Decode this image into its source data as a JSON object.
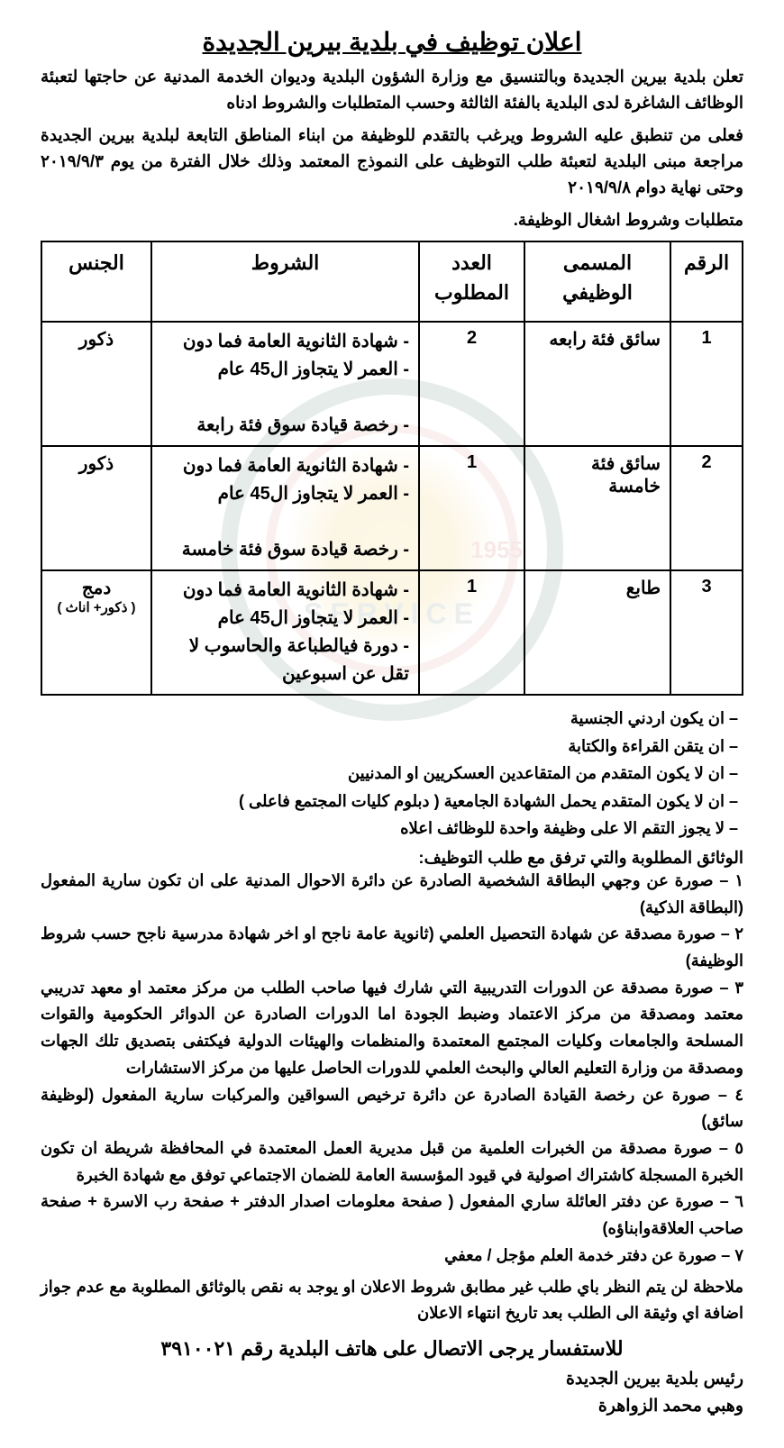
{
  "title": "اعلان توظيف في بلدية بيرين الجديدة",
  "intro": {
    "p1": "تعلن بلدية بيرين الجديدة وبالتنسيق مع وزارة الشؤون البلدية وديوان الخدمة المدنية عن حاجتها لتعبئة الوظائف الشاغرة لدى البلدية بالفئة الثالثة وحسب المتطلبات والشروط ادناه",
    "p2": "فعلى من تنطبق عليه الشروط ويرغب بالتقدم للوظيفة من ابناء المناطق التابعة لبلدية بيرين الجديدة مراجعة مبنى البلدية لتعبئة طلب التوظيف على النموذج المعتمد وذلك خلال الفترة من يوم ٢٠١٩/٩/٣ وحتى نهاية دوام ٢٠١٩/٩/٨",
    "conditions_label": "متطلبات وشروط اشغال الوظيفة."
  },
  "table": {
    "headers": {
      "num": "الرقم",
      "job": "المسمى الوظيفي",
      "count": "العدد المطلوب",
      "cond": "الشروط",
      "gender": "الجنس"
    },
    "rows": [
      {
        "num": "1",
        "job": "سائق فئة رابعه",
        "count": "2",
        "cond": "- شهادة الثانوية العامة فما دون\n- العمر لا يتجاوز ال45 عام\n\n- رخصة قيادة سوق فئة رابعة",
        "gender": "ذكور",
        "gender_sub": ""
      },
      {
        "num": "2",
        "job": "سائق فئة خامسة",
        "count": "1",
        "cond": "- شهادة الثانوية العامة فما دون\n- العمر لا يتجاوز ال45 عام\n\n- رخصة قيادة سوق فئة خامسة",
        "gender": "ذكور",
        "gender_sub": ""
      },
      {
        "num": "3",
        "job": "طابع",
        "count": "1",
        "cond": "- شهادة الثانوية العامة فما دون\n- العمر لا يتجاوز ال45 عام\n- دورة فيالطباعة والحاسوب لا تقل عن اسبوعين",
        "gender": "دمج",
        "gender_sub": "( ذكور+ اناث )"
      }
    ]
  },
  "general": [
    "ان يكون اردني الجنسية",
    "ان يتقن القراءة والكتابة",
    "ان لا يكون المتقدم من المتقاعدين العسكريين او المدنيين",
    "ان لا يكون المتقدم يحمل الشهادة الجامعية ( دبلوم كليات المجتمع فاعلى )",
    "لا يجوز التقم الا على وظيفة واحدة للوظائف اعلاه"
  ],
  "documents": {
    "title": "الوثائق المطلوبة والتي ترفق مع طلب التوظيف:",
    "items": [
      "١ – صورة عن وجهي البطاقة الشخصية الصادرة عن دائرة الاحوال المدنية على ان تكون سارية المفعول (البطاقة الذكية)",
      "٢ – صورة مصدقة عن شهادة التحصيل العلمي (ثانوية عامة ناجح او اخر شهادة مدرسية ناجح حسب شروط الوظيفة)",
      "٣ – صورة مصدقة عن الدورات التدريبية التي شارك فيها صاحب الطلب من مركز معتمد او معهد تدريبي معتمد ومصدقة من مركز الاعتماد وضبط الجودة اما الدورات الصادرة عن الدوائر الحكومية والقوات المسلحة والجامعات وكليات المجتمع المعتمدة والمنظمات والهيئات الدولية فيكتفى بتصديق تلك الجهات ومصدقة من وزارة التعليم العالي والبحث العلمي للدورات الحاصل عليها من مركز الاستشارات",
      "٤ – صورة عن رخصة القيادة الصادرة عن دائرة ترخيص السواقين والمركبات سارية المفعول (لوظيفة سائق)",
      "٥ – صورة مصدقة من الخبرات العلمية من قبل مديرية العمل المعتمدة في المحافظة شريطة ان تكون الخبرة المسجلة كاشتراك اصولية في قيود المؤسسة العامة للضمان الاجتماعي توفق مع شهادة الخبرة",
      "٦ – صورة عن دفتر العائلة ساري المفعول ( صفحة معلومات اصدار الدفتر + صفحة رب الاسرة + صفحة صاحب العلاقةوابناؤه)",
      "٧  – صورة عن دفتر خدمة العلم مؤجل / معفي"
    ]
  },
  "note": "ملاحظة  لن يتم النظر باي طلب غير مطابق  شروط الاعلان  او يوجد به نقص بالوثائق المطلوبة مع عدم جواز اضافة اي وثيقة الى الطلب بعد تاريخ انتهاء الاعلان",
  "inquiry": "للاستفسار يرجى الاتصال على هاتف البلدية رقم ٣٩١٠٠٢١",
  "signature": {
    "line1": "رئيس بلدية بيرين الجديدة",
    "line2": "وهبي محمد الزواهرة"
  }
}
